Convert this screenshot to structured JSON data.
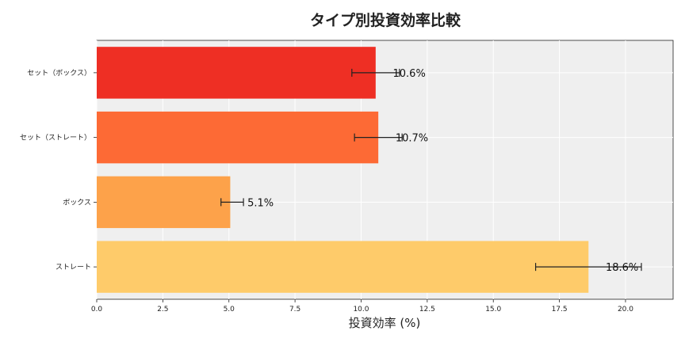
{
  "chart_data": {
    "type": "bar",
    "orientation": "horizontal",
    "title": "タイプ別投資効率比較",
    "xlabel": "投資効率 (%)",
    "ylabel": "",
    "xlim": [
      0,
      21.8
    ],
    "xticks": [
      "0.0",
      "2.5",
      "5.0",
      "7.5",
      "10.0",
      "12.5",
      "15.0",
      "17.5",
      "20.0"
    ],
    "grid": true,
    "categories": [
      "セット（ボックス）",
      "セット（ストレート）",
      "ボックス",
      "ストレート"
    ],
    "values": [
      10.55,
      10.65,
      5.05,
      18.6
    ],
    "error_low": [
      9.65,
      9.75,
      4.7,
      16.6
    ],
    "error_high": [
      11.45,
      11.55,
      5.55,
      20.6
    ],
    "labels": [
      "10.6%",
      "10.7%",
      "5.1%",
      "18.6%"
    ],
    "colors": [
      "#ee2f24",
      "#fd6a35",
      "#fda24a",
      "#fecb6a"
    ]
  }
}
